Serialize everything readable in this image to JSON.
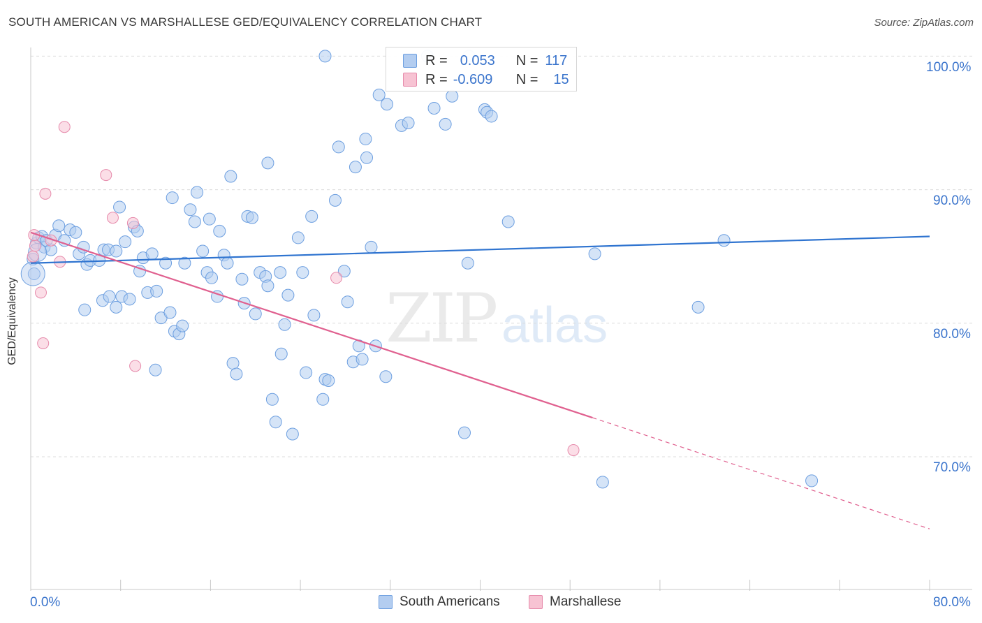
{
  "title": "SOUTH AMERICAN VS MARSHALLESE GED/EQUIVALENCY CORRELATION CHART",
  "source": "Source: ZipAtlas.com",
  "watermark": {
    "part1": "ZIP",
    "part2": "atlas"
  },
  "stats": {
    "blue": {
      "r_label": "R =",
      "r_value": "0.053",
      "n_label": "N =",
      "n_value": "117"
    },
    "pink": {
      "r_label": "R =",
      "r_value": "-0.609",
      "n_label": "N =",
      "n_value": "15"
    }
  },
  "colors": {
    "blue_fill": "#b3cdf0",
    "blue_stroke": "#6d9fe0",
    "blue_line": "#2f74d0",
    "pink_fill": "#f7c3d3",
    "pink_stroke": "#e68aab",
    "pink_line": "#e0608f"
  },
  "chart_data": {
    "type": "scatter",
    "title": "SOUTH AMERICAN VS MARSHALLESE GED/EQUIVALENCY CORRELATION CHART",
    "xlabel": "",
    "ylabel": "GED/Equivalency",
    "xlim": [
      0,
      80
    ],
    "ylim": [
      60,
      101.5
    ],
    "x_tick_labels": [
      "0.0%",
      "80.0%"
    ],
    "y_ticks": [
      70,
      80,
      90,
      100
    ],
    "y_tick_labels": [
      "70.0%",
      "80.0%",
      "90.0%",
      "100.0%"
    ],
    "grid": "horizontal dashed",
    "legend_position": "bottom",
    "series": [
      {
        "name": "South Americans",
        "color": "#6d9fe0",
        "trend": {
          "x0": 0,
          "y0": 84.5,
          "x1": 80,
          "y1": 86.5
        },
        "points": [
          [
            0.2,
            84.8
          ],
          [
            0.3,
            83.7
          ],
          [
            0.5,
            86.0
          ],
          [
            0.7,
            86.4
          ],
          [
            1.0,
            86.5
          ],
          [
            1.2,
            85.7
          ],
          [
            1.4,
            86.2
          ],
          [
            1.8,
            85.5
          ],
          [
            2.2,
            86.6
          ],
          [
            2.5,
            87.3
          ],
          [
            3.0,
            86.2
          ],
          [
            3.5,
            87.0
          ],
          [
            4.0,
            86.8
          ],
          [
            4.3,
            85.2
          ],
          [
            4.7,
            85.7
          ],
          [
            5.0,
            84.4
          ],
          [
            5.3,
            84.7
          ],
          [
            4.8,
            81.0
          ],
          [
            6.1,
            84.7
          ],
          [
            6.5,
            85.5
          ],
          [
            6.9,
            85.5
          ],
          [
            7.6,
            85.4
          ],
          [
            6.4,
            81.7
          ],
          [
            7.0,
            82.0
          ],
          [
            7.6,
            81.2
          ],
          [
            8.1,
            82.0
          ],
          [
            8.8,
            81.8
          ],
          [
            8.4,
            86.1
          ],
          [
            7.9,
            88.7
          ],
          [
            9.2,
            87.2
          ],
          [
            9.5,
            86.9
          ],
          [
            9.7,
            83.9
          ],
          [
            10.0,
            84.9
          ],
          [
            10.4,
            82.3
          ],
          [
            10.8,
            85.2
          ],
          [
            11.2,
            82.4
          ],
          [
            11.6,
            80.4
          ],
          [
            12.0,
            84.5
          ],
          [
            12.4,
            80.8
          ],
          [
            11.1,
            76.5
          ],
          [
            12.8,
            79.4
          ],
          [
            13.2,
            79.2
          ],
          [
            13.5,
            79.8
          ],
          [
            13.7,
            84.5
          ],
          [
            12.6,
            89.4
          ],
          [
            14.2,
            88.5
          ],
          [
            14.6,
            87.6
          ],
          [
            15.3,
            85.4
          ],
          [
            15.7,
            83.8
          ],
          [
            15.9,
            87.8
          ],
          [
            16.1,
            83.4
          ],
          [
            14.8,
            89.8
          ],
          [
            16.6,
            82.0
          ],
          [
            16.8,
            86.9
          ],
          [
            17.2,
            85.1
          ],
          [
            17.5,
            84.5
          ],
          [
            17.8,
            91.0
          ],
          [
            18.0,
            77.0
          ],
          [
            18.3,
            76.2
          ],
          [
            18.8,
            83.3
          ],
          [
            19.0,
            81.5
          ],
          [
            19.3,
            88.0
          ],
          [
            19.7,
            87.9
          ],
          [
            20.0,
            80.7
          ],
          [
            20.4,
            83.8
          ],
          [
            20.9,
            83.5
          ],
          [
            21.1,
            82.8
          ],
          [
            21.5,
            74.3
          ],
          [
            21.8,
            72.6
          ],
          [
            22.3,
            77.7
          ],
          [
            22.6,
            79.9
          ],
          [
            22.9,
            82.1
          ],
          [
            22.2,
            83.8
          ],
          [
            21.1,
            92.0
          ],
          [
            23.3,
            71.7
          ],
          [
            23.8,
            86.4
          ],
          [
            24.2,
            83.8
          ],
          [
            24.5,
            76.3
          ],
          [
            25.0,
            88.0
          ],
          [
            25.2,
            80.6
          ],
          [
            26.0,
            74.3
          ],
          [
            26.2,
            75.8
          ],
          [
            26.5,
            75.7
          ],
          [
            27.1,
            89.2
          ],
          [
            27.4,
            93.2
          ],
          [
            27.9,
            83.9
          ],
          [
            28.2,
            81.6
          ],
          [
            28.7,
            77.1
          ],
          [
            28.9,
            91.7
          ],
          [
            29.2,
            78.3
          ],
          [
            29.5,
            77.3
          ],
          [
            29.8,
            93.8
          ],
          [
            29.9,
            92.4
          ],
          [
            30.3,
            85.7
          ],
          [
            30.7,
            78.3
          ],
          [
            31.0,
            97.1
          ],
          [
            31.7,
            96.4
          ],
          [
            26.2,
            100.0
          ],
          [
            31.6,
            76.0
          ],
          [
            33.0,
            94.8
          ],
          [
            33.6,
            95.0
          ],
          [
            35.3,
            100.0
          ],
          [
            35.9,
            96.1
          ],
          [
            36.9,
            94.9
          ],
          [
            37.5,
            97.0
          ],
          [
            38.9,
            84.5
          ],
          [
            39.0,
            100.0
          ],
          [
            40.4,
            96.0
          ],
          [
            40.6,
            95.8
          ],
          [
            41.0,
            95.5
          ],
          [
            38.6,
            71.8
          ],
          [
            42.5,
            87.6
          ],
          [
            50.2,
            85.2
          ],
          [
            50.9,
            68.1
          ],
          [
            59.4,
            81.2
          ],
          [
            61.7,
            86.2
          ],
          [
            69.5,
            68.2
          ]
        ]
      },
      {
        "name": "Marshallese",
        "color": "#e68aab",
        "trend": {
          "x0": 0,
          "y0": 86.8,
          "x1": 80,
          "y1": 64.6,
          "solid_until_x": 50
        },
        "points": [
          [
            0.2,
            85.0
          ],
          [
            0.4,
            85.8
          ],
          [
            0.9,
            82.3
          ],
          [
            1.1,
            78.5
          ],
          [
            1.3,
            89.7
          ],
          [
            1.8,
            86.2
          ],
          [
            2.6,
            84.6
          ],
          [
            3.0,
            94.7
          ],
          [
            6.7,
            91.1
          ],
          [
            7.3,
            87.9
          ],
          [
            9.1,
            87.5
          ],
          [
            9.3,
            76.8
          ],
          [
            27.2,
            83.4
          ],
          [
            48.3,
            70.5
          ],
          [
            0.3,
            86.6
          ]
        ]
      }
    ]
  },
  "legend": {
    "blue_label": "South Americans",
    "pink_label": "Marshallese"
  }
}
